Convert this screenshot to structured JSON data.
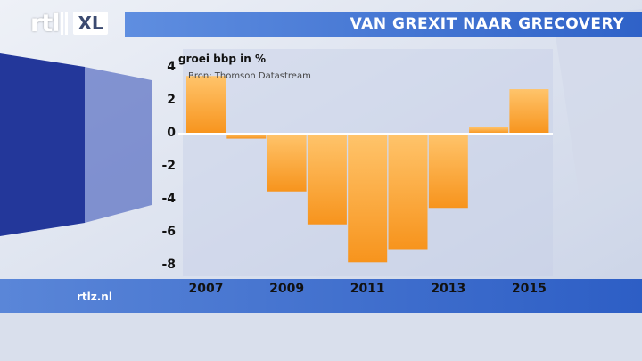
{
  "title": "VAN GREXIT NAAR GRECOVERY",
  "logo": {
    "brand": "rtl",
    "sub": "XL"
  },
  "site": "rtlz.nl",
  "chart_data": {
    "type": "bar",
    "ylabel": "groei bbp in %",
    "source": "Bron: Thomson Datastream",
    "categories": [
      "2007",
      "2008",
      "2009",
      "2010",
      "2011",
      "2012",
      "2013",
      "2014",
      "2015"
    ],
    "values": [
      3.5,
      -0.3,
      -3.5,
      -5.5,
      -7.8,
      -7.0,
      -4.5,
      0.4,
      2.7
    ],
    "ylim": [
      -8,
      4
    ],
    "yticks": [
      "4",
      "2",
      "0",
      "-2",
      "-4",
      "-6",
      "-8"
    ],
    "xtick_labels": [
      "2007",
      "2009",
      "2011",
      "2013",
      "2015"
    ],
    "grid": false,
    "colors": {
      "bar": "#f7941d",
      "bar_light": "#ffc46b",
      "zero_line": "#ffffff"
    }
  }
}
